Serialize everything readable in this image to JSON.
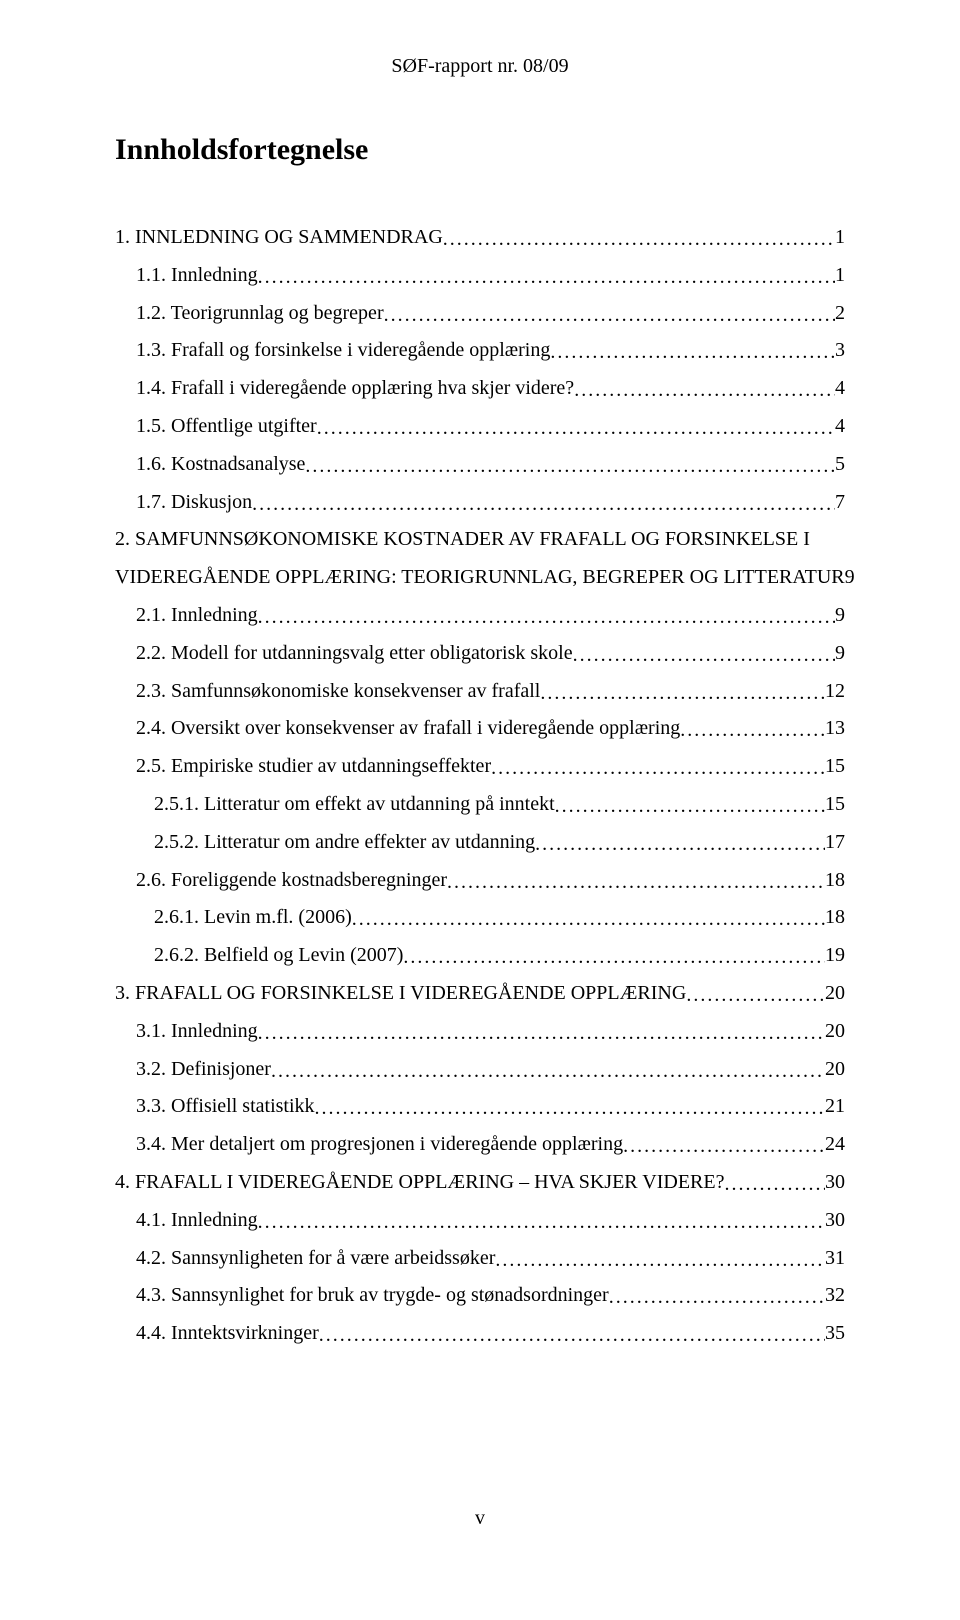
{
  "header": "SØF-rapport nr. 08/09",
  "title": "Innholdsfortegnelse",
  "footer": "v",
  "toc": [
    {
      "indent": 0,
      "label": "1. INNLEDNING OG SAMMENDRAG",
      "page": "1"
    },
    {
      "indent": 1,
      "label": "1.1. Innledning",
      "page": "1"
    },
    {
      "indent": 1,
      "label": "1.2. Teorigrunnlag og begreper",
      "page": "2"
    },
    {
      "indent": 1,
      "label": "1.3. Frafall og forsinkelse i videregående opplæring",
      "page": "3"
    },
    {
      "indent": 1,
      "label": "1.4. Frafall i videregående opplæring hva skjer videre?",
      "page": "4"
    },
    {
      "indent": 1,
      "label": "1.5. Offentlige utgifter",
      "page": "4"
    },
    {
      "indent": 1,
      "label": "1.6. Kostnadsanalyse",
      "page": "5"
    },
    {
      "indent": 1,
      "label": "1.7. Diskusjon",
      "page": "7"
    },
    {
      "indent": 0,
      "label": "2. SAMFUNNSØKONOMISKE KOSTNADER AV FRAFALL OG FORSINKELSE I",
      "page": ""
    },
    {
      "indent": 0,
      "label": "VIDEREGÅENDE OPPLÆRING: TEORIGRUNNLAG, BEGREPER OG LITTERATUR",
      "page": "9"
    },
    {
      "indent": 1,
      "label": "2.1. Innledning",
      "page": "9"
    },
    {
      "indent": 1,
      "label": "2.2. Modell for utdanningsvalg etter obligatorisk skole",
      "page": "9"
    },
    {
      "indent": 1,
      "label": "2.3. Samfunnsøkonomiske konsekvenser av frafall",
      "page": "12"
    },
    {
      "indent": 1,
      "label": "2.4. Oversikt over konsekvenser av frafall i videregående opplæring",
      "page": "13"
    },
    {
      "indent": 1,
      "label": "2.5. Empiriske studier av utdanningseffekter",
      "page": "15"
    },
    {
      "indent": 2,
      "label": "2.5.1. Litteratur om effekt av utdanning på inntekt",
      "page": "15"
    },
    {
      "indent": 2,
      "label": "2.5.2. Litteratur om andre effekter av utdanning",
      "page": "17"
    },
    {
      "indent": 1,
      "label": "2.6. Foreliggende kostnadsberegninger",
      "page": "18"
    },
    {
      "indent": 2,
      "label": "2.6.1. Levin m.fl. (2006)",
      "page": "18"
    },
    {
      "indent": 2,
      "label": "2.6.2. Belfield og Levin (2007)",
      "page": "19"
    },
    {
      "indent": 0,
      "label": "3. FRAFALL OG FORSINKELSE I VIDEREGÅENDE OPPLÆRING",
      "page": "20"
    },
    {
      "indent": 1,
      "label": "3.1. Innledning",
      "page": "20"
    },
    {
      "indent": 1,
      "label": "3.2. Definisjoner",
      "page": "20"
    },
    {
      "indent": 1,
      "label": "3.3. Offisiell statistikk",
      "page": "21"
    },
    {
      "indent": 1,
      "label": "3.4. Mer detaljert om progresjonen i videregående opplæring",
      "page": "24"
    },
    {
      "indent": 0,
      "label": "4. FRAFALL I VIDEREGÅENDE OPPLÆRING – HVA SKJER VIDERE?",
      "page": "30"
    },
    {
      "indent": 1,
      "label": "4.1. Innledning",
      "page": "30"
    },
    {
      "indent": 1,
      "label": "4.2. Sannsynligheten for å være arbeidssøker",
      "page": "31"
    },
    {
      "indent": 1,
      "label": "4.3. Sannsynlighet for bruk av trygde- og stønadsordninger",
      "page": "32"
    },
    {
      "indent": 1,
      "label": "4.4. Inntektsvirkninger",
      "page": "35"
    }
  ]
}
